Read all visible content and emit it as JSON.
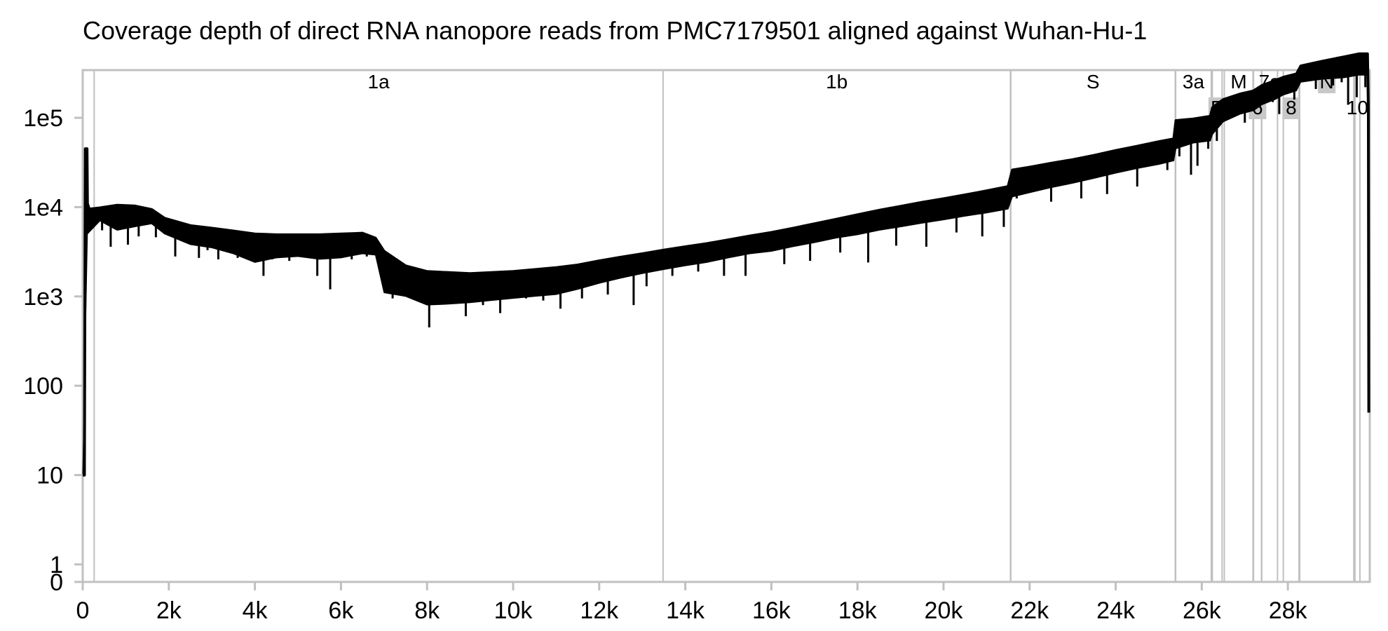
{
  "chart_data": {
    "type": "line",
    "title": "Coverage depth of direct RNA nanopore reads from PMC7179501 aligned against Wuhan-Hu-1",
    "xlabel": "",
    "ylabel": "",
    "y_scale": "log1p",
    "xlim": [
      0,
      29903
    ],
    "ylim": [
      0,
      600000
    ],
    "grid": false,
    "colors": {
      "line": "#000000",
      "frame": "#c0c0c0",
      "gene_line": "#c0c0c0",
      "gene_label_bg": "#c8c8c8"
    },
    "x_ticks": [
      {
        "value": 0,
        "label": "0"
      },
      {
        "value": 2000,
        "label": "2k"
      },
      {
        "value": 4000,
        "label": "4k"
      },
      {
        "value": 6000,
        "label": "6k"
      },
      {
        "value": 8000,
        "label": "8k"
      },
      {
        "value": 10000,
        "label": "10k"
      },
      {
        "value": 12000,
        "label": "12k"
      },
      {
        "value": 14000,
        "label": "14k"
      },
      {
        "value": 16000,
        "label": "16k"
      },
      {
        "value": 18000,
        "label": "18k"
      },
      {
        "value": 20000,
        "label": "20k"
      },
      {
        "value": 22000,
        "label": "22k"
      },
      {
        "value": 24000,
        "label": "24k"
      },
      {
        "value": 26000,
        "label": "26k"
      },
      {
        "value": 28000,
        "label": "28k"
      }
    ],
    "y_ticks": [
      {
        "value": 0,
        "label": "0"
      },
      {
        "value": 1,
        "label": "1"
      },
      {
        "value": 10,
        "label": "10"
      },
      {
        "value": 100,
        "label": "100"
      },
      {
        "value": 1000,
        "label": "1e3"
      },
      {
        "value": 10000,
        "label": "1e4"
      },
      {
        "value": 100000,
        "label": "1e5"
      }
    ],
    "genes": [
      {
        "name": "1a",
        "start": 266,
        "end": 13483,
        "row": 0,
        "boxed": false
      },
      {
        "name": "1b",
        "start": 13483,
        "end": 21555,
        "row": 0,
        "boxed": false
      },
      {
        "name": "S",
        "start": 21563,
        "end": 25384,
        "row": 0,
        "boxed": false
      },
      {
        "name": "3a",
        "start": 25393,
        "end": 26220,
        "row": 0,
        "boxed": false
      },
      {
        "name": "E",
        "start": 26245,
        "end": 26472,
        "row": 1,
        "boxed": true
      },
      {
        "name": "M",
        "start": 26523,
        "end": 27191,
        "row": 0,
        "boxed": false
      },
      {
        "name": "6",
        "start": 27202,
        "end": 27387,
        "row": 1,
        "boxed": true
      },
      {
        "name": "7a",
        "start": 27394,
        "end": 27759,
        "row": 0,
        "boxed": false
      },
      {
        "name": "8",
        "start": 27894,
        "end": 28259,
        "row": 1,
        "boxed": true
      },
      {
        "name": "N",
        "start": 28274,
        "end": 29533,
        "row": 0,
        "boxed": true
      },
      {
        "name": "10",
        "start": 29558,
        "end": 29674,
        "row": 1,
        "boxed": false
      }
    ],
    "series": [
      {
        "upper": [
          [
            0,
            10
          ],
          [
            40,
            10
          ],
          [
            60,
            45000
          ],
          [
            100,
            45000
          ],
          [
            110,
            11000
          ],
          [
            150,
            9500
          ],
          [
            400,
            9800
          ],
          [
            800,
            10500
          ],
          [
            1200,
            10300
          ],
          [
            1600,
            9400
          ],
          [
            1900,
            7500
          ],
          [
            2500,
            6200
          ],
          [
            3000,
            5800
          ],
          [
            3500,
            5400
          ],
          [
            4000,
            5000
          ],
          [
            4500,
            4900
          ],
          [
            5000,
            4900
          ],
          [
            5500,
            4900
          ],
          [
            6000,
            5000
          ],
          [
            6500,
            5100
          ],
          [
            6800,
            4500
          ],
          [
            7000,
            3200
          ],
          [
            7500,
            2200
          ],
          [
            8000,
            1900
          ],
          [
            8500,
            1850
          ],
          [
            9000,
            1800
          ],
          [
            9500,
            1850
          ],
          [
            10000,
            1900
          ],
          [
            10500,
            2000
          ],
          [
            11000,
            2100
          ],
          [
            11500,
            2250
          ],
          [
            12000,
            2500
          ],
          [
            12500,
            2750
          ],
          [
            13000,
            3000
          ],
          [
            13500,
            3300
          ],
          [
            14000,
            3600
          ],
          [
            14500,
            3900
          ],
          [
            15000,
            4300
          ],
          [
            15500,
            4750
          ],
          [
            16000,
            5200
          ],
          [
            16500,
            5800
          ],
          [
            17000,
            6500
          ],
          [
            17500,
            7300
          ],
          [
            18000,
            8200
          ],
          [
            18500,
            9200
          ],
          [
            19000,
            10200
          ],
          [
            19500,
            11300
          ],
          [
            20000,
            12400
          ],
          [
            20500,
            13700
          ],
          [
            21000,
            15200
          ],
          [
            21500,
            17000
          ],
          [
            21600,
            26000
          ],
          [
            22000,
            28000
          ],
          [
            22500,
            31000
          ],
          [
            23000,
            34000
          ],
          [
            23500,
            38000
          ],
          [
            24000,
            43000
          ],
          [
            24500,
            48000
          ],
          [
            25000,
            54000
          ],
          [
            25350,
            58000
          ],
          [
            25400,
            93000
          ],
          [
            25800,
            97000
          ],
          [
            26200,
            104000
          ],
          [
            26250,
            130000
          ],
          [
            26500,
            160000
          ],
          [
            26900,
            185000
          ],
          [
            27200,
            200000
          ],
          [
            27400,
            230000
          ],
          [
            27700,
            260000
          ],
          [
            27900,
            285000
          ],
          [
            28200,
            310000
          ],
          [
            28300,
            380000
          ],
          [
            28800,
            430000
          ],
          [
            29300,
            480000
          ],
          [
            29650,
            520000
          ],
          [
            29850,
            520000
          ],
          [
            29870,
            130000
          ],
          [
            29880,
            50
          ]
        ],
        "lower": [
          [
            110,
            5000
          ],
          [
            400,
            7000
          ],
          [
            800,
            5500
          ],
          [
            1200,
            6000
          ],
          [
            1600,
            6500
          ],
          [
            1900,
            5000
          ],
          [
            2500,
            3800
          ],
          [
            3000,
            3500
          ],
          [
            3500,
            3000
          ],
          [
            4000,
            2400
          ],
          [
            4500,
            2700
          ],
          [
            5000,
            2800
          ],
          [
            5500,
            2600
          ],
          [
            6000,
            2700
          ],
          [
            6500,
            3000
          ],
          [
            6800,
            2900
          ],
          [
            7000,
            1100
          ],
          [
            7500,
            1000
          ],
          [
            8000,
            800
          ],
          [
            8500,
            820
          ],
          [
            9000,
            850
          ],
          [
            9500,
            900
          ],
          [
            10000,
            950
          ],
          [
            10500,
            1000
          ],
          [
            11000,
            1050
          ],
          [
            11500,
            1200
          ],
          [
            12000,
            1400
          ],
          [
            12500,
            1600
          ],
          [
            13000,
            1800
          ],
          [
            13500,
            2000
          ],
          [
            14000,
            2200
          ],
          [
            14500,
            2400
          ],
          [
            15000,
            2700
          ],
          [
            15500,
            3000
          ],
          [
            16000,
            3200
          ],
          [
            16500,
            3600
          ],
          [
            17000,
            4000
          ],
          [
            17500,
            4500
          ],
          [
            18000,
            4900
          ],
          [
            18500,
            5500
          ],
          [
            19000,
            6000
          ],
          [
            19500,
            6600
          ],
          [
            20000,
            7200
          ],
          [
            20500,
            7900
          ],
          [
            21000,
            8600
          ],
          [
            21500,
            9500
          ],
          [
            21600,
            13000
          ],
          [
            22000,
            14500
          ],
          [
            22500,
            16500
          ],
          [
            23000,
            18500
          ],
          [
            23500,
            21000
          ],
          [
            24000,
            24000
          ],
          [
            24500,
            27000
          ],
          [
            25000,
            30000
          ],
          [
            25350,
            33000
          ],
          [
            25400,
            45000
          ],
          [
            25800,
            52000
          ],
          [
            26200,
            55000
          ],
          [
            26250,
            65000
          ],
          [
            26500,
            90000
          ],
          [
            26900,
            110000
          ],
          [
            27200,
            120000
          ],
          [
            27400,
            140000
          ],
          [
            27700,
            160000
          ],
          [
            27900,
            180000
          ],
          [
            28200,
            200000
          ],
          [
            28300,
            250000
          ],
          [
            28800,
            270000
          ],
          [
            29300,
            280000
          ],
          [
            29650,
            300000
          ],
          [
            29850,
            300000
          ]
        ],
        "dips": [
          [
            450,
            5500
          ],
          [
            650,
            3600
          ],
          [
            1050,
            3800
          ],
          [
            1300,
            4700
          ],
          [
            1700,
            4600
          ],
          [
            2150,
            2800
          ],
          [
            2700,
            2700
          ],
          [
            2900,
            3300
          ],
          [
            3150,
            2600
          ],
          [
            3600,
            2700
          ],
          [
            4200,
            1700
          ],
          [
            4400,
            2600
          ],
          [
            4800,
            2500
          ],
          [
            5100,
            3100
          ],
          [
            5450,
            1700
          ],
          [
            5750,
            1200
          ],
          [
            6250,
            2600
          ],
          [
            6600,
            2800
          ],
          [
            7200,
            950
          ],
          [
            7700,
            1000
          ],
          [
            8050,
            450
          ],
          [
            8350,
            850
          ],
          [
            8750,
            1000
          ],
          [
            8900,
            600
          ],
          [
            9300,
            800
          ],
          [
            9700,
            650
          ],
          [
            10300,
            950
          ],
          [
            10700,
            900
          ],
          [
            11100,
            730
          ],
          [
            11600,
            950
          ],
          [
            12200,
            1050
          ],
          [
            12800,
            800
          ],
          [
            13100,
            1300
          ],
          [
            13700,
            1700
          ],
          [
            14300,
            1900
          ],
          [
            14900,
            1700
          ],
          [
            15400,
            1700
          ],
          [
            16300,
            2300
          ],
          [
            16900,
            2500
          ],
          [
            17600,
            3100
          ],
          [
            18250,
            2400
          ],
          [
            18900,
            3700
          ],
          [
            19600,
            3600
          ],
          [
            20300,
            5200
          ],
          [
            20900,
            4700
          ],
          [
            21400,
            6000
          ],
          [
            21700,
            12500
          ],
          [
            22500,
            11500
          ],
          [
            23200,
            12500
          ],
          [
            23800,
            14000
          ],
          [
            24500,
            17000
          ],
          [
            25200,
            26000
          ],
          [
            25480,
            37000
          ],
          [
            25750,
            23000
          ],
          [
            25900,
            29000
          ],
          [
            26150,
            45000
          ],
          [
            26350,
            55000
          ],
          [
            26700,
            120000
          ],
          [
            27000,
            88000
          ],
          [
            27350,
            130000
          ],
          [
            27650,
            150000
          ],
          [
            27800,
            110000
          ],
          [
            28150,
            160000
          ],
          [
            28650,
            210000
          ],
          [
            29050,
            230000
          ],
          [
            29250,
            250000
          ],
          [
            29400,
            140000
          ],
          [
            29600,
            170000
          ],
          [
            29800,
            220000
          ]
        ]
      }
    ]
  }
}
